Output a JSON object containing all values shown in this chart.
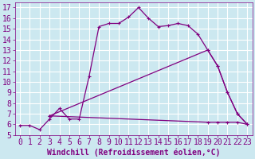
{
  "xlabel": "Windchill (Refroidissement éolien,°C)",
  "bg_color": "#cce8f0",
  "grid_color": "#ffffff",
  "line_color": "#800080",
  "xlim": [
    -0.5,
    23.5
  ],
  "ylim": [
    5,
    17.5
  ],
  "xticks": [
    0,
    1,
    2,
    3,
    4,
    5,
    6,
    7,
    8,
    9,
    10,
    11,
    12,
    13,
    14,
    15,
    16,
    17,
    18,
    19,
    20,
    21,
    22,
    23
  ],
  "yticks": [
    5,
    6,
    7,
    8,
    9,
    10,
    11,
    12,
    13,
    14,
    15,
    16,
    17
  ],
  "line1_x": [
    0,
    1,
    2,
    3,
    4,
    5,
    6,
    7,
    8,
    9,
    10,
    11,
    12,
    13,
    14,
    15,
    16,
    17,
    18,
    19,
    20,
    21,
    22,
    23
  ],
  "line1_y": [
    5.9,
    5.9,
    5.5,
    6.5,
    7.5,
    6.5,
    6.5,
    10.5,
    15.2,
    15.5,
    15.5,
    16.1,
    17.0,
    16.0,
    15.2,
    15.3,
    15.5,
    15.3,
    14.5,
    13.0,
    11.5,
    9.0,
    7.0,
    6.0
  ],
  "line2_x": [
    3,
    19,
    20,
    21,
    22,
    23
  ],
  "line2_y": [
    6.8,
    13.0,
    11.5,
    9.0,
    7.0,
    6.0
  ],
  "line3_x": [
    3,
    19,
    20,
    21,
    22,
    23
  ],
  "line3_y": [
    6.8,
    6.2,
    6.2,
    6.2,
    6.2,
    6.0
  ],
  "font_size": 7
}
